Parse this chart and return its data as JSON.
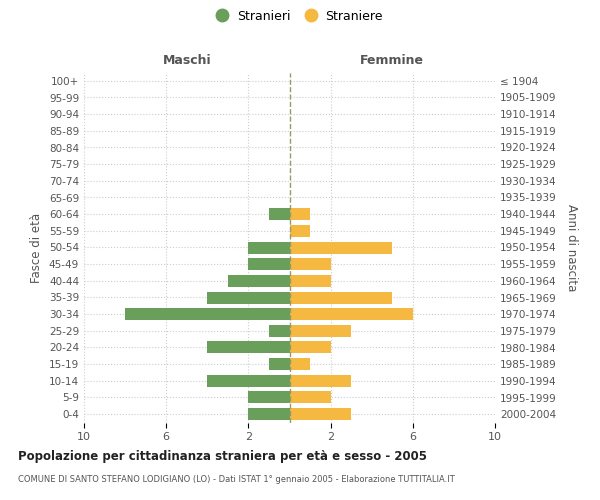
{
  "age_groups": [
    "100+",
    "95-99",
    "90-94",
    "85-89",
    "80-84",
    "75-79",
    "70-74",
    "65-69",
    "60-64",
    "55-59",
    "50-54",
    "45-49",
    "40-44",
    "35-39",
    "30-34",
    "25-29",
    "20-24",
    "15-19",
    "10-14",
    "5-9",
    "0-4"
  ],
  "birth_years": [
    "≤ 1904",
    "1905-1909",
    "1910-1914",
    "1915-1919",
    "1920-1924",
    "1925-1929",
    "1930-1934",
    "1935-1939",
    "1940-1944",
    "1945-1949",
    "1950-1954",
    "1955-1959",
    "1960-1964",
    "1965-1969",
    "1970-1974",
    "1975-1979",
    "1980-1984",
    "1985-1989",
    "1990-1994",
    "1995-1999",
    "2000-2004"
  ],
  "males": [
    0,
    0,
    0,
    0,
    0,
    0,
    0,
    0,
    1,
    0,
    2,
    2,
    3,
    4,
    8,
    1,
    4,
    1,
    4,
    2,
    2
  ],
  "females": [
    0,
    0,
    0,
    0,
    0,
    0,
    0,
    0,
    1,
    1,
    5,
    2,
    2,
    5,
    6,
    3,
    2,
    1,
    3,
    2,
    3
  ],
  "male_color": "#6a9e5b",
  "female_color": "#f5b942",
  "x_max": 10,
  "title": "Popolazione per cittadinanza straniera per età e sesso - 2005",
  "subtitle": "COMUNE DI SANTO STEFANO LODIGIANO (LO) - Dati ISTAT 1° gennaio 2005 - Elaborazione TUTTITALIA.IT",
  "legend_stranieri": "Stranieri",
  "legend_straniere": "Straniere",
  "ylabel_left": "Fasce di età",
  "ylabel_right": "Anni di nascita",
  "label_maschi": "Maschi",
  "label_femmine": "Femmine",
  "bg_color": "#ffffff",
  "grid_color": "#cccccc",
  "center_line_color": "#999966"
}
